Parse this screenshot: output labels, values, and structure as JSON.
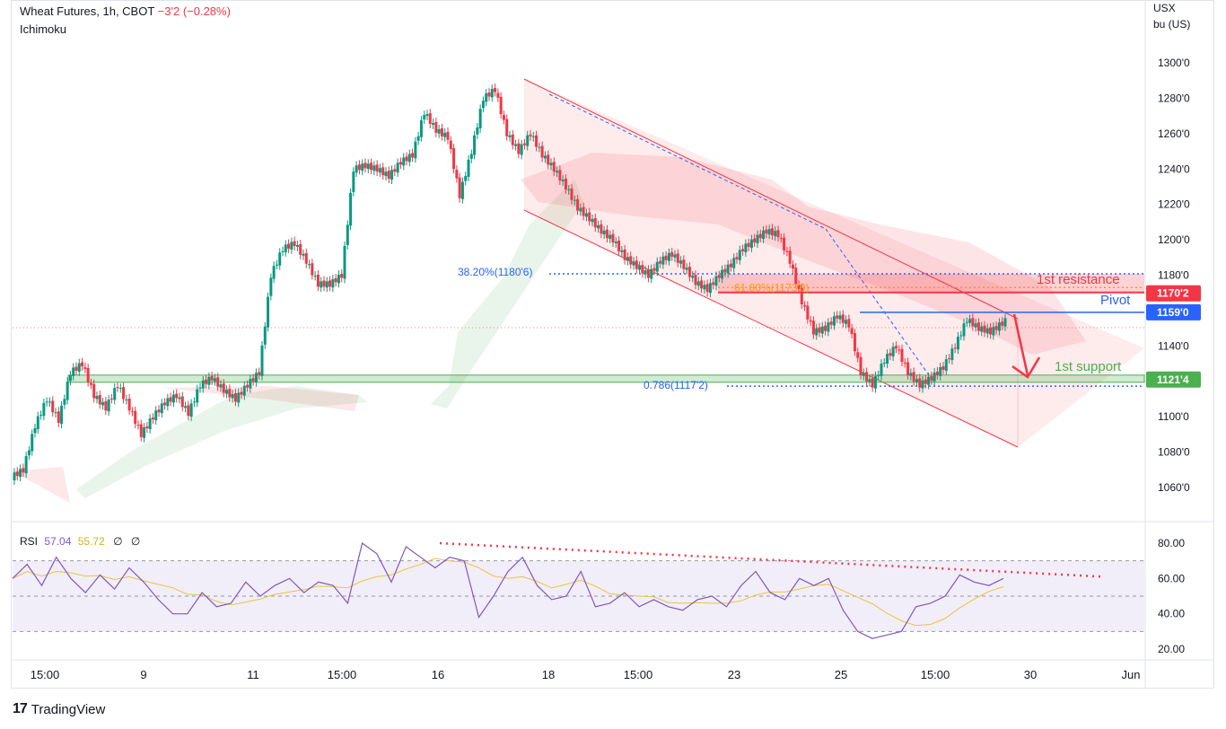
{
  "header": {
    "symbol": "Wheat Futures, 1h, CBOT",
    "change": "−3'2 (−0.28%)",
    "indicator": "Ichimoku",
    "unit_line1": "USX",
    "unit_line2": "bu (US)"
  },
  "rsi": {
    "label": "RSI",
    "value": "57.04",
    "ma_value": "55.72",
    "extra1": "∅",
    "extra2": "∅",
    "levels": [
      "80.00",
      "60.00",
      "40.00",
      "20.00"
    ]
  },
  "brand": {
    "logo": "17",
    "name": "TradingView"
  },
  "colors": {
    "up": "#089981",
    "down": "#f23645",
    "channel": "#f23645",
    "pivot": "#2962ff",
    "support": "#4caf50",
    "rsi": "#7e57c2",
    "rsi_ma": "#e8c53a",
    "fib": "#2962ff"
  },
  "annotations": {
    "resistance": "1st resistance",
    "pivot": "Pivot",
    "support": "1st support",
    "fib1": "38.20%(1180'6)",
    "fib2": "61.80%(1173'0)",
    "fib3": "0.786(1117'2)"
  },
  "price_tags": {
    "resistance": "1170'2",
    "pivot": "1159'0",
    "support": "1121'4"
  },
  "chart_data": {
    "type": "candlestick",
    "y_ticks": [
      "1300'0",
      "1280'0",
      "1260'0",
      "1240'0",
      "1220'0",
      "1200'0",
      "1180'0",
      "1160'0",
      "1140'0",
      "1120'0",
      "1100'0",
      "1080'0",
      "1060'0"
    ],
    "y_tick_values": [
      1300,
      1280,
      1260,
      1240,
      1220,
      1200,
      1180,
      1160,
      1140,
      1120,
      1100,
      1080,
      1060
    ],
    "x_ticks": [
      "15:00",
      "9",
      "11",
      "15:00",
      "16",
      "18",
      "15:00",
      "23",
      "25",
      "15:00",
      "30",
      "Jun"
    ],
    "levels": {
      "resistance": 1170.25,
      "pivot": 1159.0,
      "support": 1121.5,
      "fib_382": 1180.75,
      "fib_618": 1173.0,
      "fib_786": 1117.25
    },
    "price_path": [
      1070,
      1095,
      1110,
      1098,
      1125,
      1130,
      1112,
      1105,
      1118,
      1105,
      1090,
      1100,
      1108,
      1112,
      1102,
      1118,
      1122,
      1115,
      1110,
      1118,
      1125,
      1180,
      1195,
      1198,
      1188,
      1175,
      1175,
      1180,
      1240,
      1242,
      1240,
      1236,
      1244,
      1248,
      1272,
      1262,
      1258,
      1225,
      1250,
      1280,
      1285,
      1260,
      1250,
      1260,
      1248,
      1240,
      1230,
      1218,
      1212,
      1205,
      1200,
      1190,
      1185,
      1180,
      1188,
      1192,
      1185,
      1176,
      1172,
      1180,
      1186,
      1195,
      1200,
      1205,
      1203,
      1188,
      1165,
      1148,
      1150,
      1157,
      1152,
      1125,
      1118,
      1132,
      1140,
      1125,
      1118,
      1122,
      1128,
      1140,
      1155,
      1150,
      1148,
      1153,
      1158
    ],
    "rsi_values": [
      60,
      68,
      56,
      72,
      60,
      52,
      62,
      54,
      66,
      58,
      48,
      40,
      40,
      52,
      44,
      46,
      58,
      50,
      56,
      60,
      52,
      58,
      56,
      46,
      80,
      74,
      58,
      78,
      72,
      66,
      72,
      70,
      38,
      50,
      64,
      72,
      56,
      48,
      50,
      64,
      44,
      46,
      52,
      44,
      48,
      44,
      42,
      48,
      50,
      44,
      56,
      64,
      52,
      48,
      60,
      56,
      60,
      42,
      30,
      26,
      28,
      30,
      44,
      46,
      50,
      62,
      58,
      56,
      60
    ],
    "rsi_trendline": [
      80,
      61
    ],
    "rsi_ylim": [
      20,
      80
    ]
  }
}
